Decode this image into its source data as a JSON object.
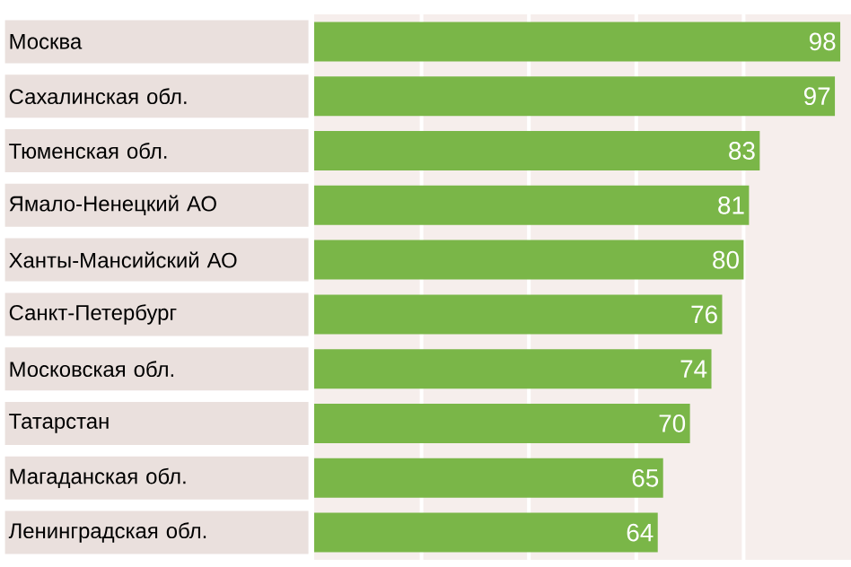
{
  "chart_data": {
    "type": "bar",
    "orientation": "horizontal",
    "categories": [
      "Москва",
      "Сахалинская обл.",
      "Тюменская обл.",
      "Ямало-Ненецкий АО",
      "Ханты-Мансийский АО",
      "Санкт-Петербург",
      "Московская обл.",
      "Татарстан",
      "Магаданская обл.",
      "Ленинградская обл."
    ],
    "values": [
      98,
      97,
      83,
      81,
      80,
      76,
      74,
      70,
      65,
      64
    ],
    "color": "#7ab648",
    "xlim": [
      0,
      100
    ],
    "xticks": [
      {
        "value": 20,
        "label": null
      },
      {
        "value": 40,
        "label": null
      },
      {
        "value": 60,
        "label": null
      },
      {
        "value": 80,
        "label": null
      }
    ],
    "grid": "x",
    "tick_labels": "y",
    "data_labels": true
  }
}
